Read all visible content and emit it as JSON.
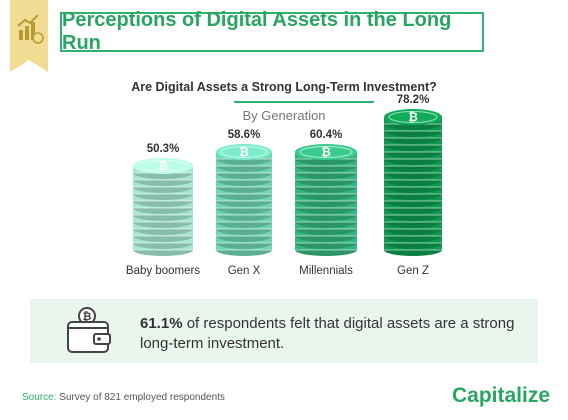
{
  "header": {
    "title": "Perceptions of Digital Assets in the Long Run"
  },
  "question": "Are Digital Assets a Strong Long-Term Investment?",
  "subtitle": "By Generation",
  "chart_data": {
    "type": "bar",
    "categories": [
      "Baby boomers",
      "Gen X",
      "Millennials",
      "Gen Z"
    ],
    "values": [
      50.3,
      58.6,
      60.4,
      78.2
    ],
    "value_labels": [
      "50.3%",
      "58.6%",
      "60.4%",
      "78.2%"
    ],
    "unit": "%",
    "colors": [
      "#a6e6cf",
      "#6fd4b4",
      "#34b67f",
      "#0e9a50"
    ]
  },
  "callout": {
    "highlight": "61.1%",
    "text": " of respondents felt that digital assets are a strong long-term investment."
  },
  "footer": {
    "source_label": "Source:",
    "source_text": " Survey of 821 employed respondents",
    "brand": "Capitalize"
  },
  "icons": [
    "chart-badge-icon",
    "bitcoin-icon",
    "wallet-icon"
  ]
}
